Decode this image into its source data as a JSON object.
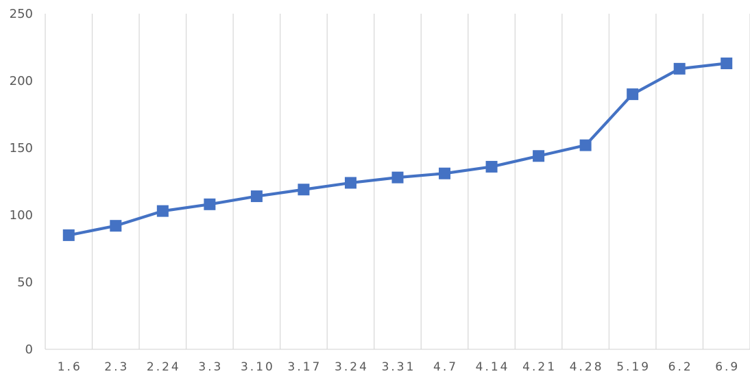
{
  "chart_data": {
    "type": "line",
    "title": "",
    "xlabel": "",
    "ylabel": "",
    "categories": [
      "1.6",
      "2.3",
      "2.24",
      "3.3",
      "3.10",
      "3.17",
      "3.24",
      "3.31",
      "4.7",
      "4.14",
      "4.21",
      "4.28",
      "5.19",
      "6.2",
      "6.9"
    ],
    "series": [
      {
        "values": [
          85,
          92,
          103,
          108,
          114,
          119,
          124,
          128,
          131,
          136,
          144,
          152,
          190,
          209,
          213
        ],
        "color": "#4472C4",
        "marker": "square"
      }
    ],
    "ylim": [
      0,
      250
    ],
    "yticks": [
      0,
      50,
      100,
      150,
      200,
      250
    ],
    "grid": "vertical",
    "legend": "none"
  }
}
